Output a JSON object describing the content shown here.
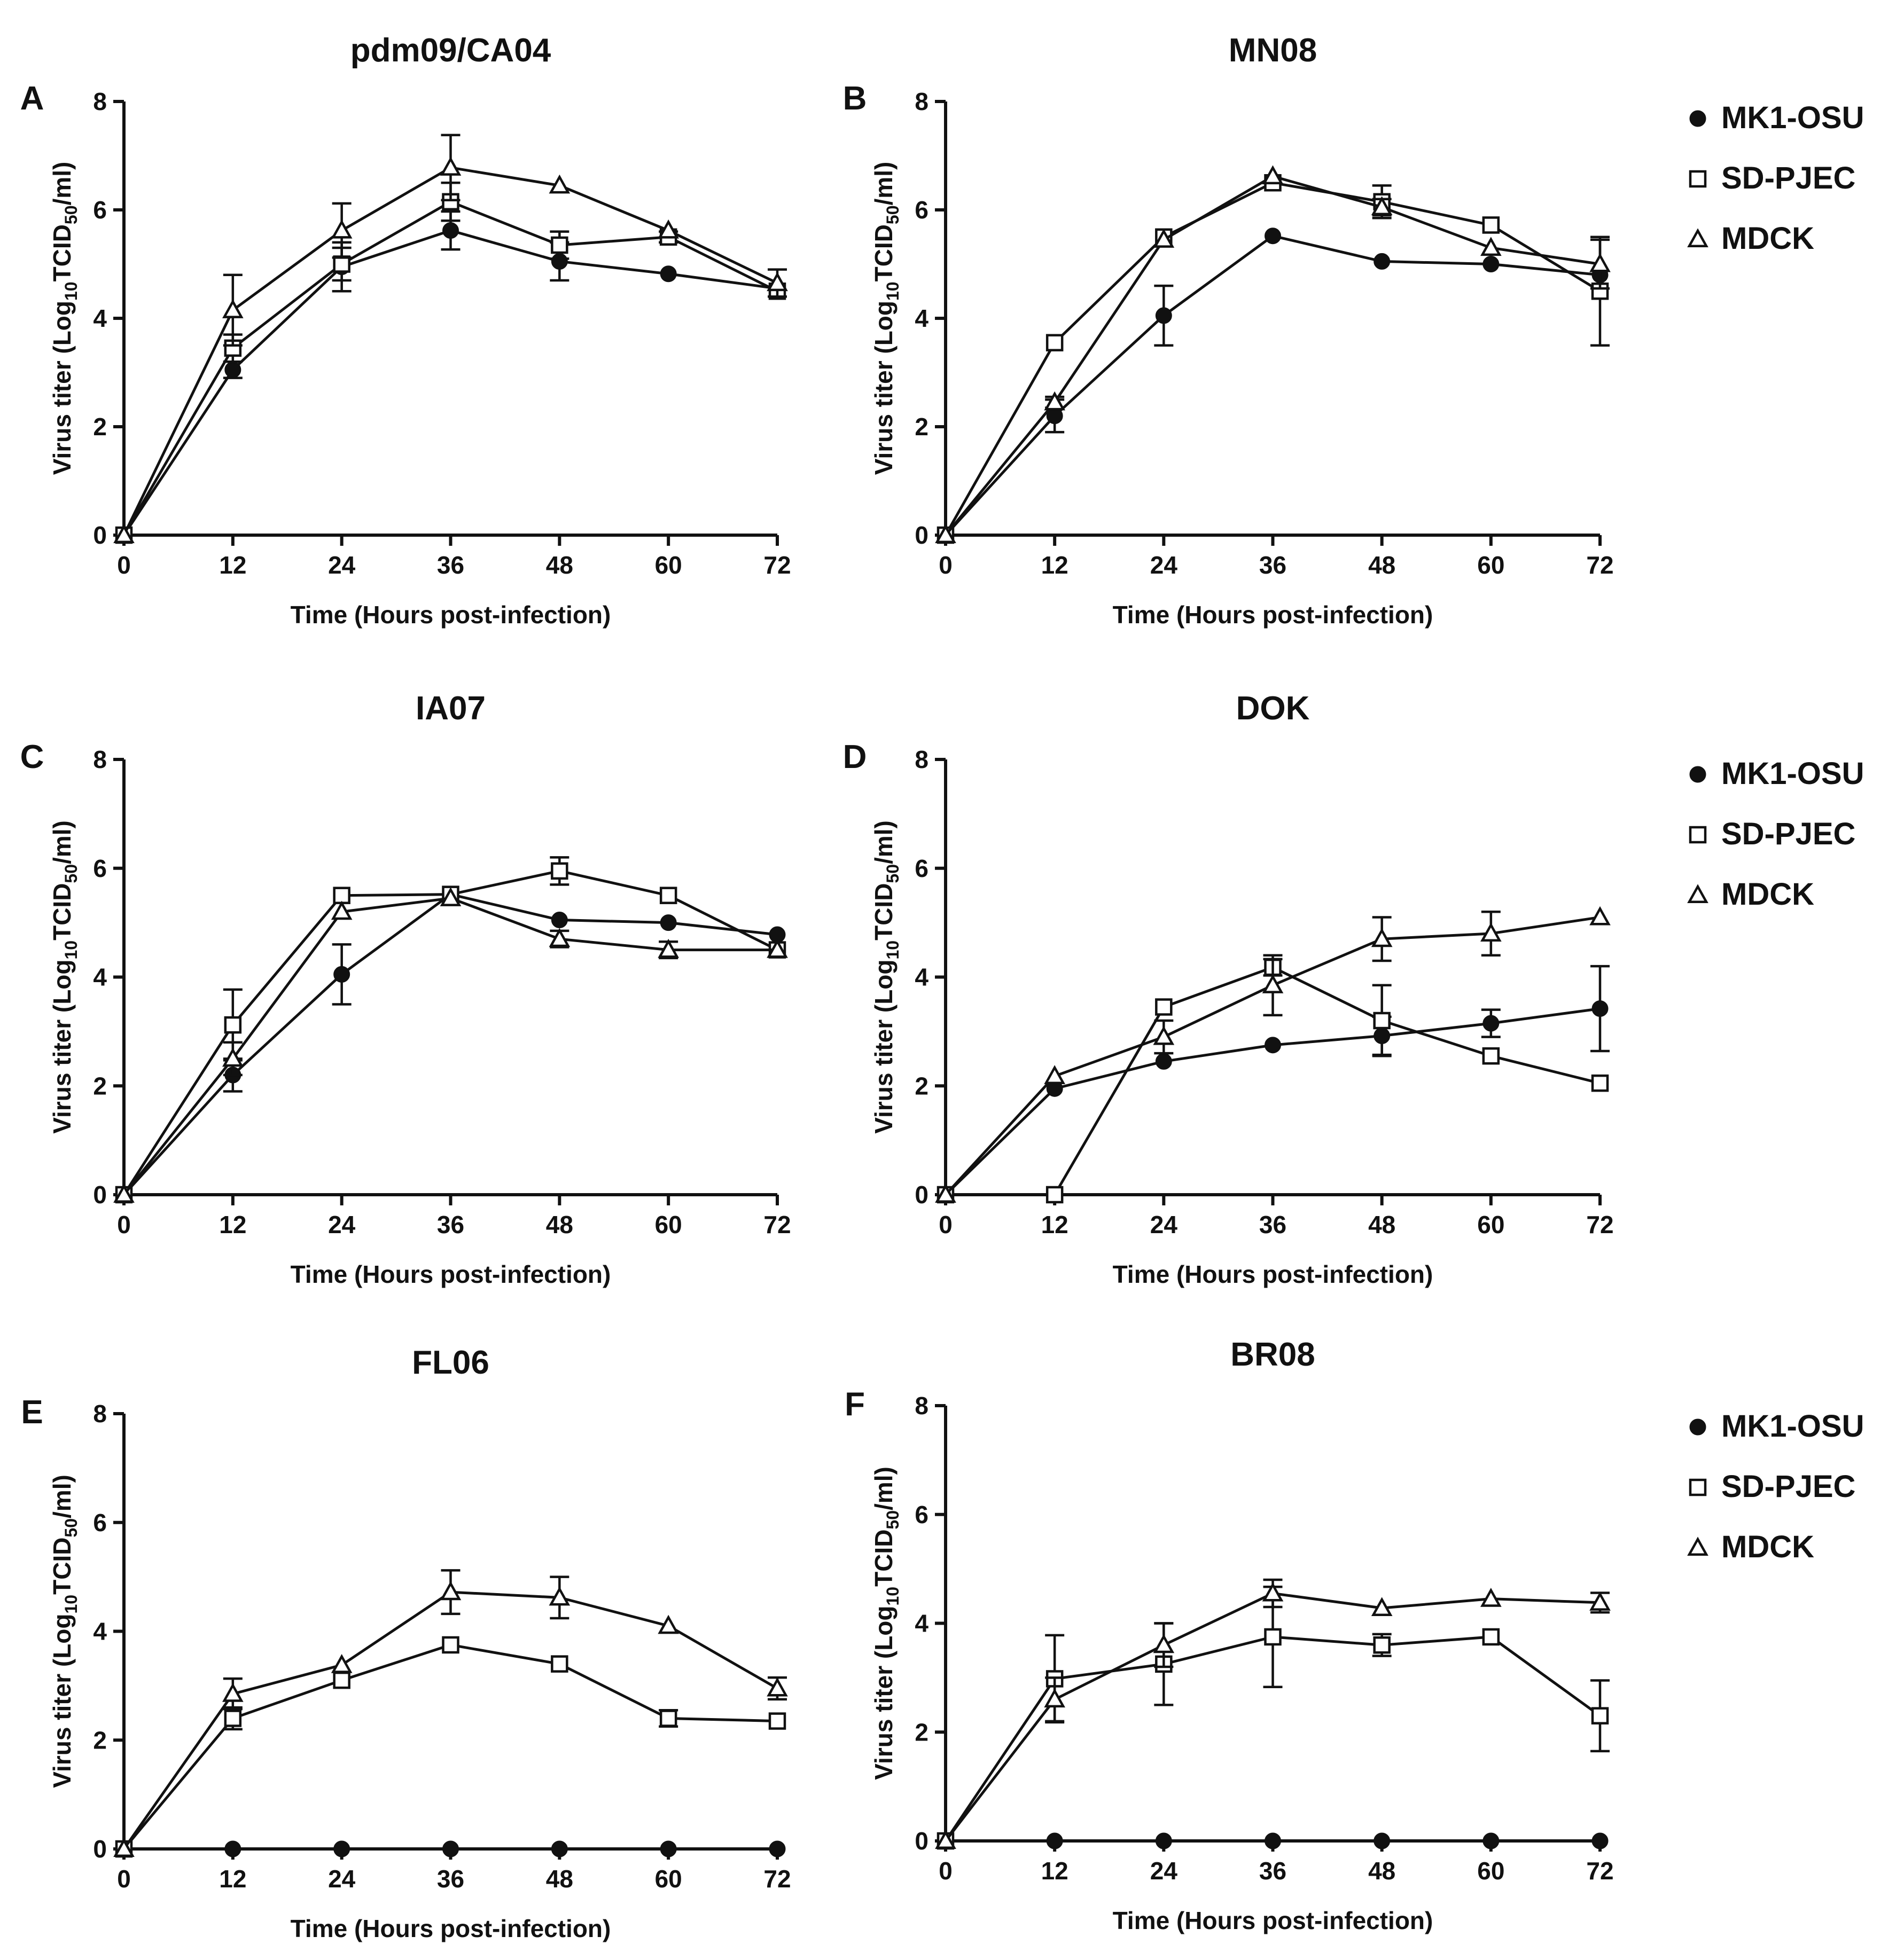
{
  "figure": {
    "legend": {
      "entries": [
        {
          "name": "MK1-OSU",
          "marker": "filled-circle"
        },
        {
          "name": "SD-PJEC",
          "marker": "open-square"
        },
        {
          "name": "MDCK",
          "marker": "open-triangle"
        }
      ]
    }
  },
  "chart_data": [
    {
      "panel": "A",
      "type": "line",
      "title": "pdm09/CA04",
      "xlabel": "Time (Hours post-infection)",
      "ylabel_parts": [
        "Virus titer (Log",
        "10",
        "TCID",
        "50",
        "/ml)"
      ],
      "x": [
        0,
        12,
        24,
        36,
        48,
        60,
        72
      ],
      "xlim": [
        0,
        72
      ],
      "ylim": [
        0,
        8
      ],
      "xticks": [
        0,
        12,
        24,
        36,
        48,
        60,
        72
      ],
      "yticks": [
        0,
        2,
        4,
        6,
        8
      ],
      "series": [
        {
          "name": "MK1-OSU",
          "values": [
            0,
            3.05,
            4.95,
            5.62,
            5.05,
            4.82,
            4.55
          ],
          "errors": [
            0,
            0.15,
            0.45,
            0.35,
            0.35,
            0,
            0
          ]
        },
        {
          "name": "SD-PJEC",
          "values": [
            0,
            3.45,
            5.0,
            6.15,
            5.35,
            5.5,
            4.5
          ],
          "errors": [
            0,
            0.25,
            0.3,
            0.35,
            0.25,
            0.1,
            0
          ]
        },
        {
          "name": "MDCK",
          "values": [
            0,
            4.15,
            5.62,
            6.78,
            6.45,
            5.62,
            4.65
          ],
          "errors": [
            0,
            0.65,
            0.5,
            0.6,
            0,
            0,
            0.25
          ]
        }
      ]
    },
    {
      "panel": "B",
      "type": "line",
      "title": "MN08",
      "xlabel": "Time (Hours post-infection)",
      "ylabel_parts": [
        "Virus titer (Log",
        "10",
        "TCID",
        "50",
        "/ml)"
      ],
      "x": [
        0,
        12,
        24,
        36,
        48,
        60,
        72
      ],
      "xlim": [
        0,
        72
      ],
      "ylim": [
        0,
        8
      ],
      "xticks": [
        0,
        12,
        24,
        36,
        48,
        60,
        72
      ],
      "yticks": [
        0,
        2,
        4,
        6,
        8
      ],
      "series": [
        {
          "name": "MK1-OSU",
          "values": [
            0,
            2.2,
            4.05,
            5.52,
            5.05,
            5.0,
            4.8
          ],
          "errors": [
            0,
            0.3,
            0.55,
            0,
            0,
            0,
            0
          ]
        },
        {
          "name": "SD-PJEC",
          "values": [
            0,
            3.55,
            5.5,
            6.5,
            6.15,
            5.72,
            4.5
          ],
          "errors": [
            0,
            0,
            0,
            0,
            0.3,
            0,
            1.0
          ]
        },
        {
          "name": "MDCK",
          "values": [
            0,
            2.45,
            5.45,
            6.62,
            6.05,
            5.3,
            5.0
          ],
          "errors": [
            0,
            0.1,
            0,
            0,
            0.15,
            0,
            0.45
          ]
        }
      ]
    },
    {
      "panel": "C",
      "type": "line",
      "title": "IA07",
      "xlabel": "Time (Hours post-infection)",
      "ylabel_parts": [
        "Virus titer (Log",
        "10",
        "TCID",
        "50",
        "/ml)"
      ],
      "x": [
        0,
        12,
        24,
        36,
        48,
        60,
        72
      ],
      "xlim": [
        0,
        72
      ],
      "ylim": [
        0,
        8
      ],
      "xticks": [
        0,
        12,
        24,
        36,
        48,
        60,
        72
      ],
      "yticks": [
        0,
        2,
        4,
        6,
        8
      ],
      "series": [
        {
          "name": "MK1-OSU",
          "values": [
            0,
            2.2,
            4.05,
            5.52,
            5.05,
            5.0,
            4.78
          ],
          "errors": [
            0,
            0.3,
            0.55,
            0,
            0,
            0,
            0
          ]
        },
        {
          "name": "SD-PJEC",
          "values": [
            0,
            3.12,
            5.5,
            5.52,
            5.95,
            5.5,
            4.5
          ],
          "errors": [
            0,
            0.65,
            0,
            0,
            0.25,
            0,
            0
          ]
        },
        {
          "name": "MDCK",
          "values": [
            0,
            2.5,
            5.2,
            5.45,
            4.7,
            4.5,
            4.5
          ],
          "errors": [
            0,
            0.3,
            0,
            0,
            0.15,
            0.15,
            0
          ]
        }
      ]
    },
    {
      "panel": "D",
      "type": "line",
      "title": "DOK",
      "xlabel": "Time (Hours post-infection)",
      "ylabel_parts": [
        "Virus titer (Log",
        "10",
        "TCID",
        "50",
        "/ml)"
      ],
      "x": [
        0,
        12,
        24,
        36,
        48,
        60,
        72
      ],
      "xlim": [
        0,
        72
      ],
      "ylim": [
        0,
        8
      ],
      "xticks": [
        0,
        12,
        24,
        36,
        48,
        60,
        72
      ],
      "yticks": [
        0,
        2,
        4,
        6,
        8
      ],
      "series": [
        {
          "name": "MK1-OSU",
          "values": [
            0,
            1.95,
            2.45,
            2.75,
            2.92,
            3.15,
            3.42
          ],
          "errors": [
            0,
            0,
            0,
            0,
            0.35,
            0.25,
            0.78
          ]
        },
        {
          "name": "SD-PJEC",
          "values": [
            0,
            0,
            3.45,
            4.18,
            3.2,
            2.55,
            2.05
          ],
          "errors": [
            0,
            0,
            0,
            0.15,
            0.65,
            0,
            0
          ]
        },
        {
          "name": "MDCK",
          "values": [
            0,
            2.18,
            2.9,
            3.85,
            4.7,
            4.8,
            5.1
          ],
          "errors": [
            0,
            0,
            0.3,
            0.55,
            0.4,
            0.4,
            0
          ]
        }
      ]
    },
    {
      "panel": "E",
      "type": "line",
      "title": "FL06",
      "xlabel": "Time (Hours post-infection)",
      "ylabel_parts": [
        "Virus titer (Log",
        "10",
        "TCID",
        "50",
        "/ml)"
      ],
      "x": [
        0,
        12,
        24,
        36,
        48,
        60,
        72
      ],
      "xlim": [
        0,
        72
      ],
      "ylim": [
        0,
        8
      ],
      "xticks": [
        0,
        12,
        24,
        36,
        48,
        60,
        72
      ],
      "yticks": [
        0,
        2,
        4,
        6,
        8
      ],
      "series": [
        {
          "name": "MK1-OSU",
          "values": [
            0,
            0,
            0,
            0,
            0,
            0,
            0
          ],
          "errors": [
            0,
            0,
            0,
            0,
            0,
            0,
            0
          ]
        },
        {
          "name": "SD-PJEC",
          "values": [
            0,
            2.4,
            3.1,
            3.75,
            3.4,
            2.4,
            2.35
          ],
          "errors": [
            0,
            0.2,
            0,
            0,
            0,
            0.15,
            0
          ]
        },
        {
          "name": "MDCK",
          "values": [
            0,
            2.85,
            3.38,
            4.72,
            4.62,
            4.1,
            2.95
          ],
          "errors": [
            0,
            0.28,
            0,
            0.4,
            0.38,
            0,
            0.2
          ]
        }
      ]
    },
    {
      "panel": "F",
      "type": "line",
      "title": "BR08",
      "xlabel": "Time (Hours post-infection)",
      "ylabel_parts": [
        "Virus titer (Log",
        "10",
        "TCID",
        "50",
        "/ml)"
      ],
      "x": [
        0,
        12,
        24,
        36,
        48,
        60,
        72
      ],
      "xlim": [
        0,
        72
      ],
      "ylim": [
        0,
        8
      ],
      "xticks": [
        0,
        12,
        24,
        36,
        48,
        60,
        72
      ],
      "yticks": [
        0,
        2,
        4,
        6,
        8
      ],
      "series": [
        {
          "name": "MK1-OSU",
          "values": [
            0,
            0,
            0,
            0,
            0,
            0,
            0
          ],
          "errors": [
            0,
            0,
            0,
            0,
            0,
            0,
            0
          ]
        },
        {
          "name": "SD-PJEC",
          "values": [
            0,
            2.98,
            3.25,
            3.75,
            3.6,
            3.75,
            2.3
          ],
          "errors": [
            0,
            0.8,
            0.75,
            0.92,
            0.2,
            0,
            0.65
          ]
        },
        {
          "name": "MDCK",
          "values": [
            0,
            2.6,
            3.6,
            4.55,
            4.28,
            4.45,
            4.38
          ],
          "errors": [
            0,
            0.4,
            0.4,
            0.25,
            0,
            0,
            0.18
          ]
        }
      ]
    }
  ]
}
